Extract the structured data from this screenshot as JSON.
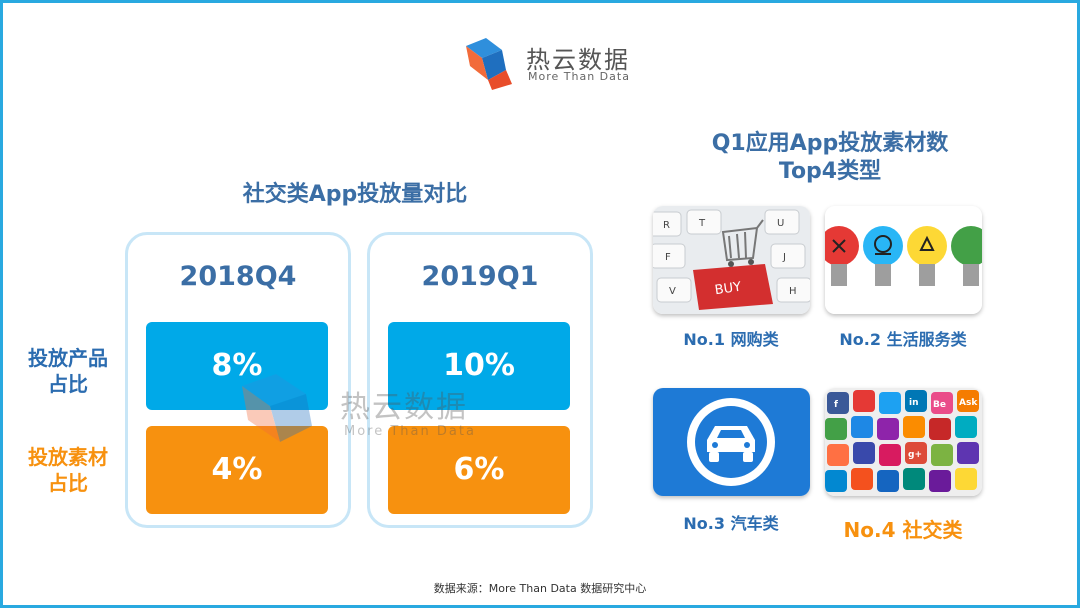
{
  "brand": {
    "name_cn": "热云数据",
    "name_en": "More Than Data"
  },
  "left": {
    "title": "社交类App投放量对比",
    "row_labels": [
      "投放产品\n占比",
      "投放素材\n占比"
    ],
    "panels": [
      {
        "year": "2018Q4",
        "product_share": "8%",
        "material_share": "4%"
      },
      {
        "year": "2019Q1",
        "product_share": "10%",
        "material_share": "6%"
      }
    ]
  },
  "right": {
    "title_line1": "Q1应用App投放素材数",
    "title_line2": "Top4类型",
    "categories": [
      {
        "label": "No.1 网购类",
        "icon": "shopping-cart-icon"
      },
      {
        "label": "No.2 生活服务类",
        "icon": "lightbulb-icon"
      },
      {
        "label": "No.3 汽车类",
        "icon": "car-icon"
      },
      {
        "label": "No.4 社交类",
        "icon": "social-apps-icon"
      }
    ]
  },
  "footer": {
    "source": "数据来源：More Than Data 数据研究中心"
  },
  "colors": {
    "border": "#29a9e0",
    "blue_box": "#00a9e8",
    "orange_box": "#f7910f",
    "title_blue": "#3b6ea5"
  }
}
